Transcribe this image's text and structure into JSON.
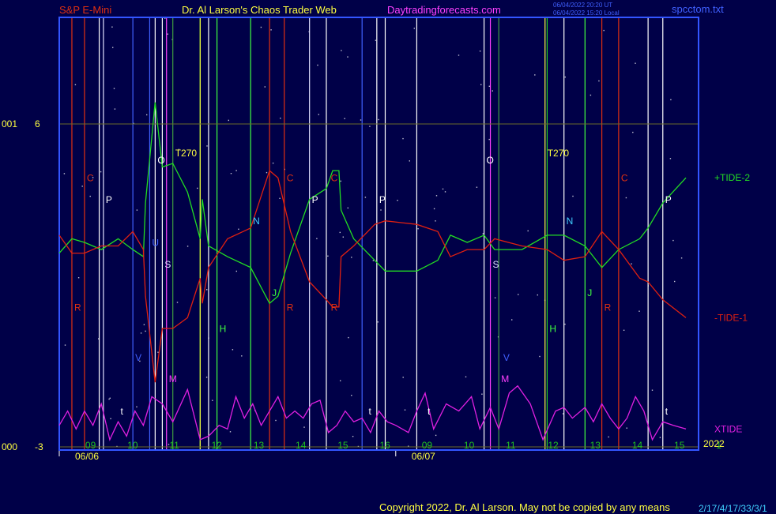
{
  "header": {
    "symbol": "S&P E-Mini",
    "author": "Dr. Al Larson's Chaos Trader Web",
    "site": "Daytradingforecasts.com",
    "time_ut": "06/04/2022 20:20 UT",
    "time_local": "06/04/2022 15:20 Local",
    "file": "spcctom.txt"
  },
  "footer": {
    "copyright": "Copyright 2022, Dr. Al Larson. May not be copied by any means",
    "code": "2/17/4/17/33/3/1"
  },
  "colors": {
    "background": "#000048",
    "frame": "#3355ff",
    "tide1": "#e02010",
    "tide2": "#22dd22",
    "xtide": "#e020e0",
    "grid": "#6a6a2a"
  },
  "chart_data": {
    "type": "line",
    "ylim": [
      -3,
      6
    ],
    "yticks": [
      {
        "value": 6,
        "left": "001",
        "right": "6"
      },
      {
        "value": -3,
        "left": "000",
        "right": "-3"
      }
    ],
    "x_hour_labels": [
      "09",
      "10",
      "11",
      "12",
      "13",
      "14",
      "15",
      "16",
      "09",
      "10",
      "11",
      "12",
      "13",
      "14",
      "15",
      "1"
    ],
    "year_label": "2022",
    "date_labels": [
      {
        "text": "06/06",
        "hour": 0
      },
      {
        "text": "06/07",
        "hour": 8
      }
    ],
    "marker_lines": [
      {
        "hour": 0.3,
        "color": "#e03010"
      },
      {
        "hour": 0.6,
        "color": "#e03010"
      },
      {
        "hour": 0.95,
        "color": "#ffffff"
      },
      {
        "hour": 1.05,
        "color": "#e0e0ff"
      },
      {
        "hour": 1.75,
        "color": "#4060ff"
      },
      {
        "hour": 2.15,
        "color": "#4060ff"
      },
      {
        "hour": 2.28,
        "color": "#ffffff"
      },
      {
        "hour": 2.45,
        "color": "#ffffff"
      },
      {
        "hour": 2.55,
        "color": "#ff40ff"
      },
      {
        "hour": 2.7,
        "color": "#40a040"
      },
      {
        "hour": 3.35,
        "color": "#20d020"
      },
      {
        "hour": 3.35,
        "color": "#ffff40"
      },
      {
        "hour": 3.55,
        "color": "#ffffff"
      },
      {
        "hour": 3.75,
        "color": "#40ff40"
      },
      {
        "hour": 4.55,
        "color": "#40ff40"
      },
      {
        "hour": 5.0,
        "color": "#e03010"
      },
      {
        "hour": 5.35,
        "color": "#e03010"
      },
      {
        "hour": 5.95,
        "color": "#e0e0ff"
      },
      {
        "hour": 6.35,
        "color": "#ffffff"
      },
      {
        "hour": 7.2,
        "color": "#4060ff"
      },
      {
        "hour": 7.55,
        "color": "#ffffff"
      },
      {
        "hour": 7.75,
        "color": "#ffffff"
      },
      {
        "hour": 8.5,
        "color": "#ffffff"
      },
      {
        "hour": 10.1,
        "color": "#ffffff"
      },
      {
        "hour": 10.25,
        "color": "#ff40ff"
      },
      {
        "hour": 10.45,
        "color": "#40a040"
      },
      {
        "hour": 11.55,
        "color": "#ffff40"
      },
      {
        "hour": 11.6,
        "color": "#20d020"
      },
      {
        "hour": 12.0,
        "color": "#ffffff"
      },
      {
        "hour": 12.5,
        "color": "#40ff40"
      },
      {
        "hour": 12.9,
        "color": "#e03010"
      },
      {
        "hour": 13.3,
        "color": "#e03010"
      },
      {
        "hour": 14.0,
        "color": "#ffffff"
      },
      {
        "hour": 14.35,
        "color": "#ffffff"
      }
    ],
    "annotations": [
      {
        "text": "T270",
        "color": "#ffff40",
        "hour": 2.7,
        "y": 5.1
      },
      {
        "text": "T270",
        "color": "#ffff40",
        "hour": 11.55,
        "y": 5.1
      },
      {
        "text": "C",
        "color": "#e03010",
        "hour": 0.6,
        "y": 4.4
      },
      {
        "text": "C",
        "color": "#e03010",
        "hour": 5.35,
        "y": 4.4
      },
      {
        "text": "C",
        "color": "#e03010",
        "hour": 6.4,
        "y": 4.4
      },
      {
        "text": "C",
        "color": "#e03010",
        "hour": 13.3,
        "y": 4.4
      },
      {
        "text": "P",
        "color": "#ffffff",
        "hour": 1.05,
        "y": 3.8
      },
      {
        "text": "P",
        "color": "#ffffff",
        "hour": 5.95,
        "y": 3.8
      },
      {
        "text": "P",
        "color": "#ffffff",
        "hour": 7.55,
        "y": 3.8
      },
      {
        "text": "P",
        "color": "#ffffff",
        "hour": 14.35,
        "y": 3.8
      },
      {
        "text": "O",
        "color": "#ffffff",
        "hour": 2.28,
        "y": 4.9
      },
      {
        "text": "O",
        "color": "#ffffff",
        "hour": 10.1,
        "y": 4.9
      },
      {
        "text": "N",
        "color": "#40d0ff",
        "hour": 4.55,
        "y": 3.2
      },
      {
        "text": "N",
        "color": "#40d0ff",
        "hour": 12.0,
        "y": 3.2
      },
      {
        "text": "U",
        "color": "#4060ff",
        "hour": 2.15,
        "y": 2.6
      },
      {
        "text": "S",
        "color": "#e0e0ff",
        "hour": 2.45,
        "y": 2.0
      },
      {
        "text": "S",
        "color": "#e0e0ff",
        "hour": 10.25,
        "y": 2.0
      },
      {
        "text": "J",
        "color": "#40ff40",
        "hour": 5.0,
        "y": 1.2
      },
      {
        "text": "J",
        "color": "#40ff40",
        "hour": 12.5,
        "y": 1.2
      },
      {
        "text": "R",
        "color": "#e03010",
        "hour": 0.3,
        "y": 0.8
      },
      {
        "text": "R",
        "color": "#e03010",
        "hour": 5.35,
        "y": 0.8
      },
      {
        "text": "R",
        "color": "#e03010",
        "hour": 6.4,
        "y": 0.8
      },
      {
        "text": "R",
        "color": "#e03010",
        "hour": 12.9,
        "y": 0.8
      },
      {
        "text": "H",
        "color": "#40ff40",
        "hour": 3.75,
        "y": 0.2
      },
      {
        "text": "H",
        "color": "#40ff40",
        "hour": 11.6,
        "y": 0.2
      },
      {
        "text": "V",
        "color": "#4060ff",
        "hour": 1.75,
        "y": -0.6
      },
      {
        "text": "V",
        "color": "#4060ff",
        "hour": 10.5,
        "y": -0.6
      },
      {
        "text": "M",
        "color": "#ff40ff",
        "hour": 2.55,
        "y": -1.2
      },
      {
        "text": "M",
        "color": "#ff40ff",
        "hour": 10.45,
        "y": -1.2
      },
      {
        "text": "t",
        "color": "#ffffff",
        "hour": 1.4,
        "y": -2.1
      },
      {
        "text": "t",
        "color": "#ffffff",
        "hour": 7.3,
        "y": -2.1
      },
      {
        "text": "t",
        "color": "#ffffff",
        "hour": 8.7,
        "y": -2.1
      },
      {
        "text": "t",
        "color": "#ffffff",
        "hour": 14.35,
        "y": -2.1
      }
    ],
    "series": [
      {
        "name": "+TIDE-2",
        "color": "#22dd22",
        "points": [
          [
            0,
            2.4
          ],
          [
            0.3,
            2.8
          ],
          [
            0.6,
            2.7
          ],
          [
            1.0,
            2.5
          ],
          [
            1.4,
            2.8
          ],
          [
            1.75,
            2.5
          ],
          [
            2.0,
            2.3
          ],
          [
            2.05,
            3.8
          ],
          [
            2.28,
            6.6
          ],
          [
            2.45,
            4.8
          ],
          [
            2.7,
            4.9
          ],
          [
            3.05,
            4.1
          ],
          [
            3.35,
            2.8
          ],
          [
            3.4,
            3.9
          ],
          [
            3.55,
            2.6
          ],
          [
            4.0,
            2.3
          ],
          [
            4.55,
            2.0
          ],
          [
            5.0,
            1.0
          ],
          [
            5.2,
            1.2
          ],
          [
            5.5,
            2.4
          ],
          [
            5.95,
            3.9
          ],
          [
            6.35,
            4.2
          ],
          [
            6.5,
            4.7
          ],
          [
            6.65,
            4.7
          ],
          [
            6.7,
            3.6
          ],
          [
            7.0,
            2.8
          ],
          [
            7.5,
            2.2
          ],
          [
            7.75,
            1.9
          ],
          [
            8.5,
            1.9
          ],
          [
            9.0,
            2.2
          ],
          [
            9.3,
            2.9
          ],
          [
            9.7,
            2.7
          ],
          [
            10.1,
            2.9
          ],
          [
            10.35,
            2.5
          ],
          [
            11.0,
            2.5
          ],
          [
            11.6,
            2.9
          ],
          [
            12.0,
            2.9
          ],
          [
            12.5,
            2.6
          ],
          [
            12.9,
            2.0
          ],
          [
            13.3,
            2.5
          ],
          [
            13.8,
            2.8
          ],
          [
            14.0,
            3.1
          ],
          [
            14.35,
            3.8
          ],
          [
            14.9,
            4.5
          ]
        ]
      },
      {
        "name": "-TIDE-1",
        "color": "#e02010",
        "points": [
          [
            0,
            2.9
          ],
          [
            0.3,
            2.4
          ],
          [
            0.6,
            2.4
          ],
          [
            1.0,
            2.6
          ],
          [
            1.4,
            2.6
          ],
          [
            1.75,
            3.0
          ],
          [
            2.0,
            2.5
          ],
          [
            2.05,
            1.2
          ],
          [
            2.28,
            -1.2
          ],
          [
            2.45,
            0.3
          ],
          [
            2.7,
            0.3
          ],
          [
            3.05,
            0.6
          ],
          [
            3.35,
            1.7
          ],
          [
            3.4,
            1.0
          ],
          [
            3.55,
            2.0
          ],
          [
            4.0,
            2.8
          ],
          [
            4.55,
            3.1
          ],
          [
            5.0,
            4.7
          ],
          [
            5.2,
            4.5
          ],
          [
            5.5,
            3.0
          ],
          [
            5.95,
            1.6
          ],
          [
            6.35,
            1.1
          ],
          [
            6.5,
            0.9
          ],
          [
            6.65,
            0.9
          ],
          [
            6.7,
            2.3
          ],
          [
            7.0,
            2.6
          ],
          [
            7.5,
            3.2
          ],
          [
            7.75,
            3.3
          ],
          [
            8.5,
            3.2
          ],
          [
            9.0,
            3.0
          ],
          [
            9.3,
            2.3
          ],
          [
            9.7,
            2.5
          ],
          [
            10.1,
            2.5
          ],
          [
            10.35,
            2.8
          ],
          [
            11.0,
            2.6
          ],
          [
            11.6,
            2.5
          ],
          [
            12.0,
            2.2
          ],
          [
            12.5,
            2.3
          ],
          [
            12.9,
            3.0
          ],
          [
            13.3,
            2.5
          ],
          [
            13.8,
            1.7
          ],
          [
            14.0,
            1.6
          ],
          [
            14.35,
            1.1
          ],
          [
            14.9,
            0.6
          ]
        ]
      },
      {
        "name": "XTIDE",
        "color": "#e020e0",
        "points": [
          [
            0,
            -2.4
          ],
          [
            0.2,
            -2.0
          ],
          [
            0.4,
            -2.5
          ],
          [
            0.6,
            -2.0
          ],
          [
            0.8,
            -2.4
          ],
          [
            1.0,
            -1.8
          ],
          [
            1.2,
            -2.8
          ],
          [
            1.4,
            -2.3
          ],
          [
            1.6,
            -2.7
          ],
          [
            1.8,
            -2.0
          ],
          [
            2.0,
            -2.4
          ],
          [
            2.2,
            -1.6
          ],
          [
            2.45,
            -1.8
          ],
          [
            2.7,
            -2.3
          ],
          [
            3.05,
            -1.4
          ],
          [
            3.35,
            -2.8
          ],
          [
            3.55,
            -2.7
          ],
          [
            3.8,
            -2.4
          ],
          [
            4.0,
            -2.5
          ],
          [
            4.2,
            -1.6
          ],
          [
            4.4,
            -2.2
          ],
          [
            4.6,
            -1.8
          ],
          [
            4.8,
            -2.4
          ],
          [
            5.0,
            -2.0
          ],
          [
            5.2,
            -1.6
          ],
          [
            5.4,
            -2.2
          ],
          [
            5.6,
            -2.0
          ],
          [
            5.8,
            -2.2
          ],
          [
            6.0,
            -1.8
          ],
          [
            6.2,
            -1.7
          ],
          [
            6.4,
            -2.6
          ],
          [
            6.6,
            -2.4
          ],
          [
            6.8,
            -2.0
          ],
          [
            7.0,
            -2.3
          ],
          [
            7.2,
            -2.2
          ],
          [
            7.4,
            -2.6
          ],
          [
            7.6,
            -2.0
          ],
          [
            7.8,
            -2.3
          ],
          [
            8.0,
            -2.4
          ],
          [
            8.3,
            -2.6
          ],
          [
            8.5,
            -2.0
          ],
          [
            8.7,
            -1.5
          ],
          [
            8.9,
            -2.5
          ],
          [
            9.2,
            -1.8
          ],
          [
            9.5,
            -2.0
          ],
          [
            9.8,
            -1.6
          ],
          [
            10.0,
            -2.5
          ],
          [
            10.25,
            -1.9
          ],
          [
            10.45,
            -2.5
          ],
          [
            10.7,
            -1.5
          ],
          [
            10.9,
            -1.3
          ],
          [
            11.2,
            -1.8
          ],
          [
            11.5,
            -2.8
          ],
          [
            11.8,
            -2.0
          ],
          [
            12.0,
            -1.9
          ],
          [
            12.2,
            -2.2
          ],
          [
            12.5,
            -1.9
          ],
          [
            12.7,
            -2.3
          ],
          [
            12.9,
            -1.8
          ],
          [
            13.1,
            -2.2
          ],
          [
            13.3,
            -2.5
          ],
          [
            13.5,
            -2.2
          ],
          [
            13.7,
            -1.6
          ],
          [
            13.9,
            -2.0
          ],
          [
            14.1,
            -2.8
          ],
          [
            14.35,
            -2.3
          ],
          [
            14.6,
            -2.4
          ],
          [
            14.9,
            -2.5
          ]
        ]
      }
    ]
  }
}
